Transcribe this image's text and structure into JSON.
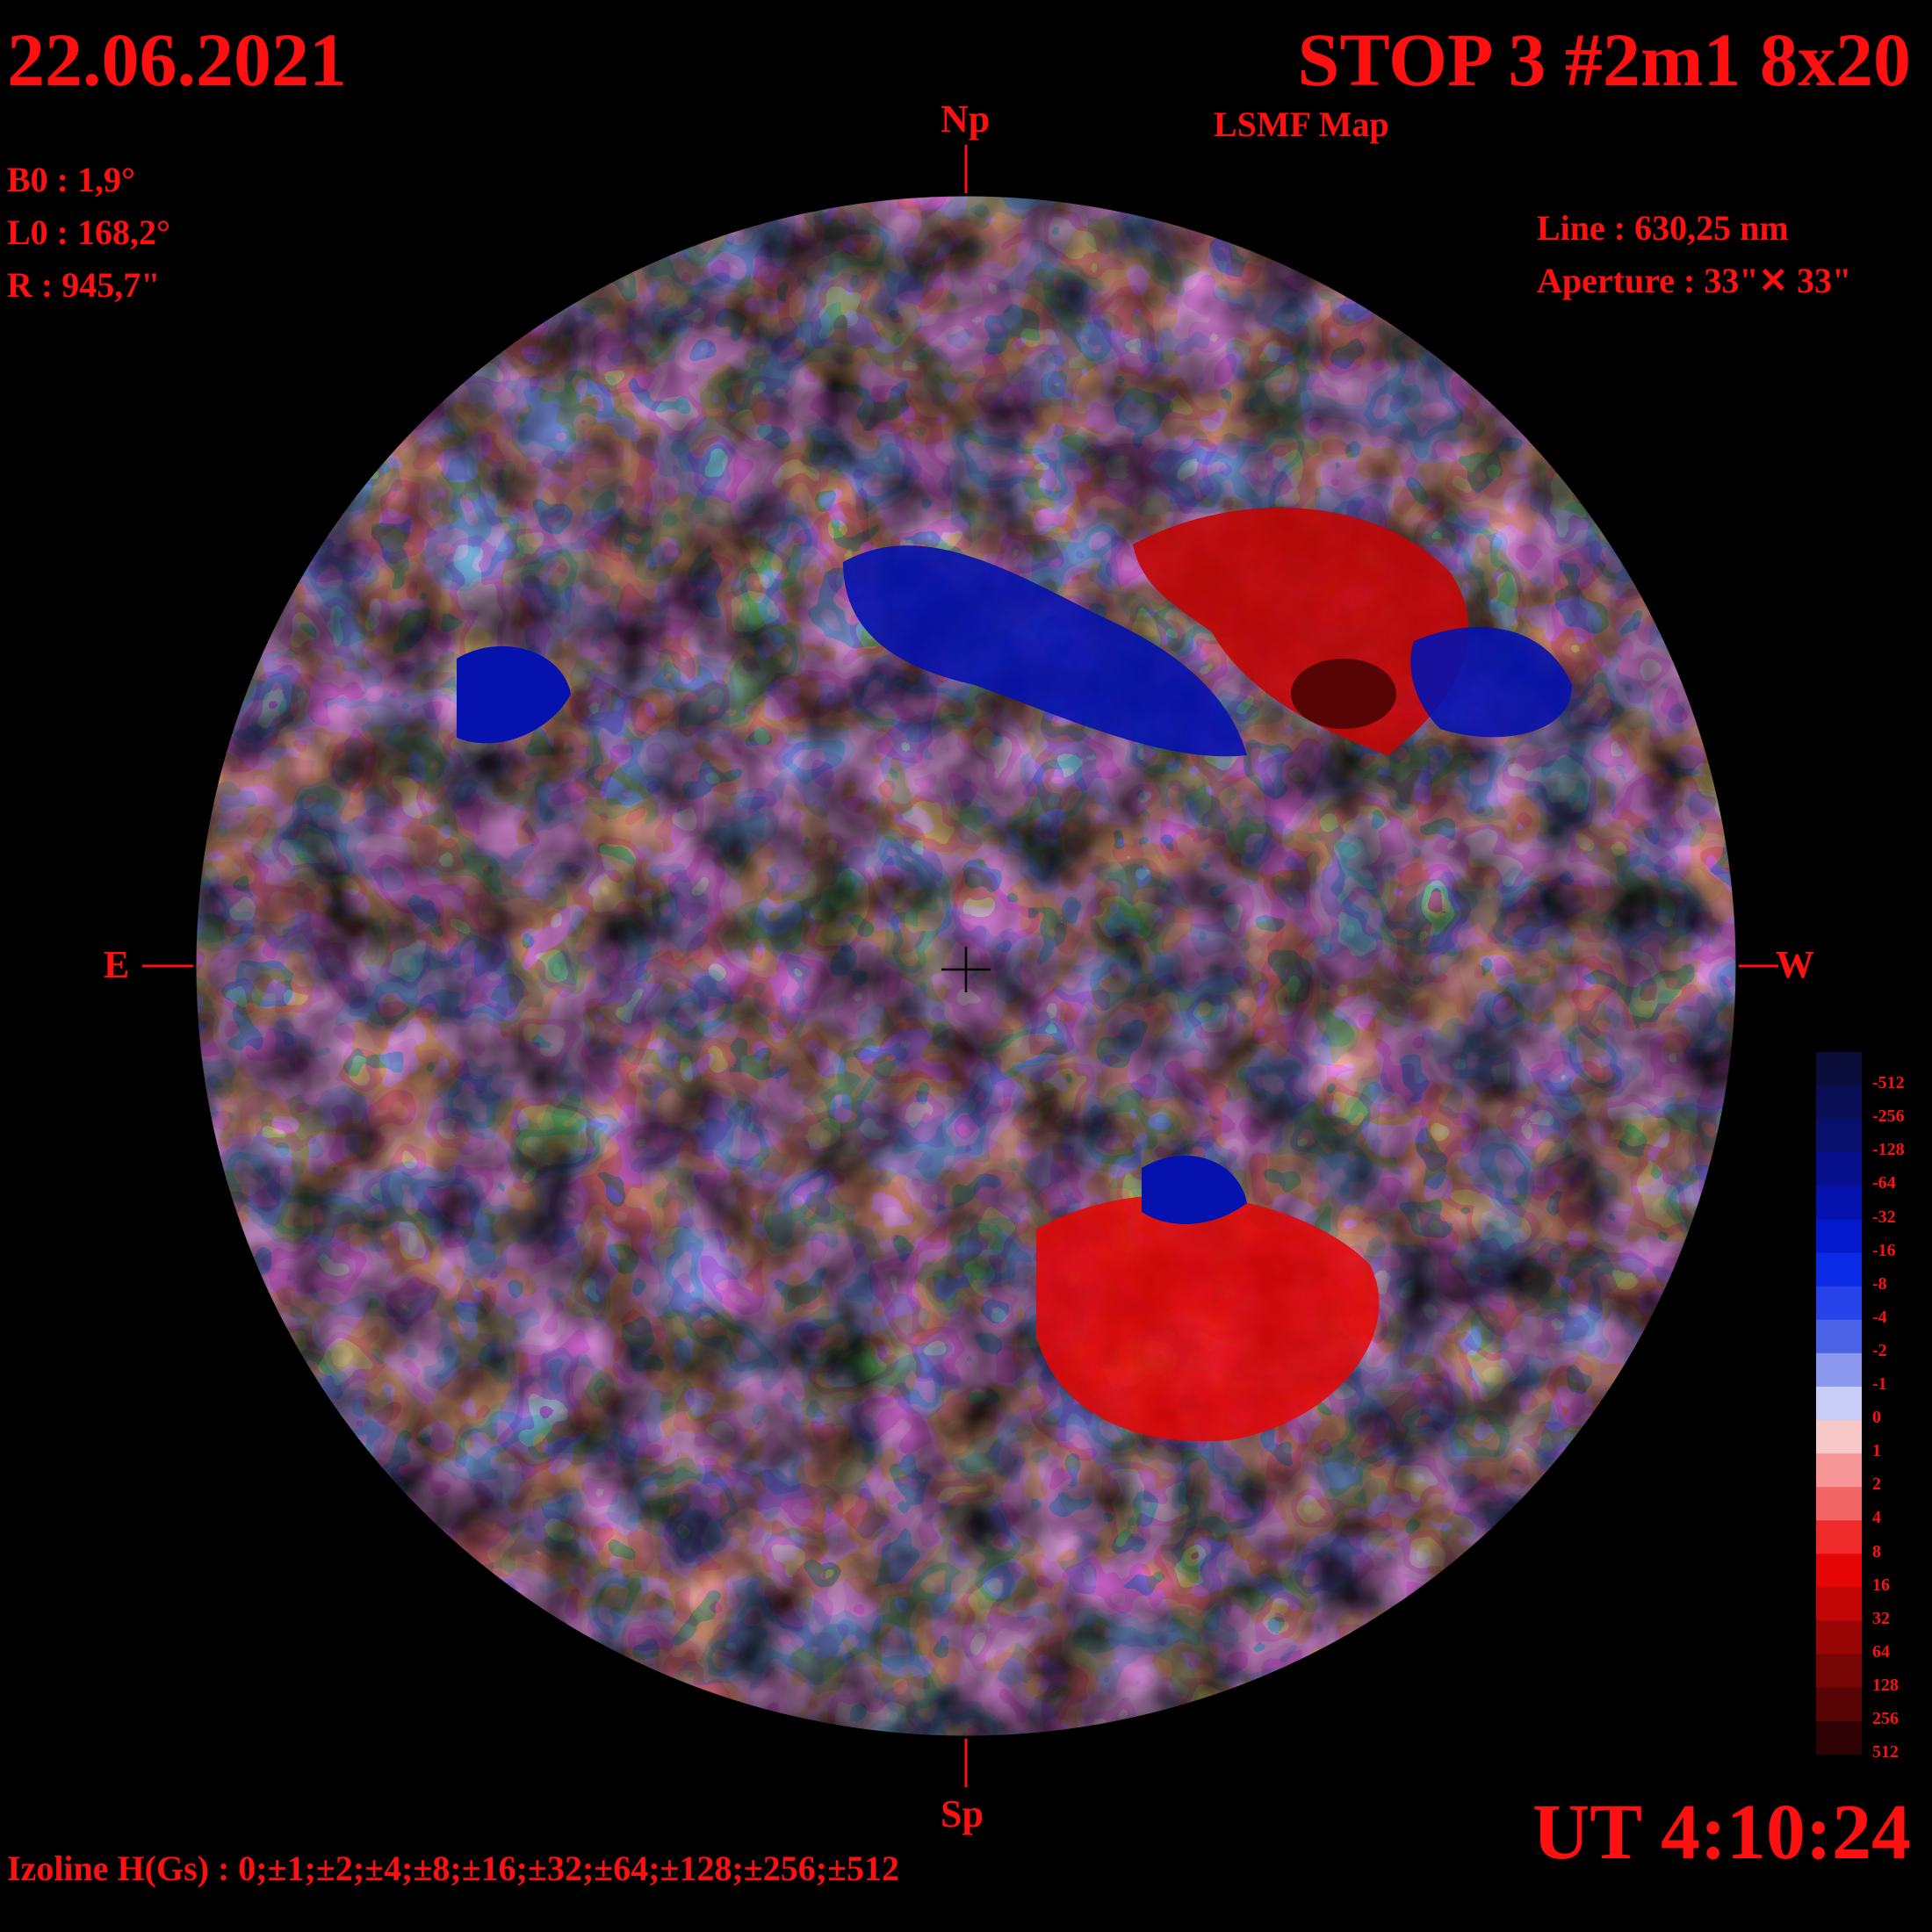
{
  "header": {
    "date": "22.06.2021",
    "title": "STOP 3 #2m1 8x20",
    "subtitle": "LSMF  Map"
  },
  "params": {
    "b0": "B0 : 1,9°",
    "l0": "L0 : 168,2°",
    "r": "R  : 945,7\""
  },
  "instrument": {
    "line": "Line :  630,25 nm",
    "aperture": "Aperture : 33\"✕ 33\""
  },
  "directions": {
    "north": "Np",
    "south": "Sp",
    "east": "E",
    "west": "W"
  },
  "time": "UT 4:10:24",
  "izoline": "Izoline H(Gs) : 0;±1;±2;±4;±8;±16;±32;±64;±128;±256;±512",
  "colorscale": {
    "levels": [
      "-512",
      "-256",
      "-128",
      "-64",
      "-32",
      "-16",
      "-8",
      "-4",
      "-2",
      "-1",
      "0",
      "1",
      "2",
      "4",
      "8",
      "16",
      "32",
      "64",
      "128",
      "256",
      "512"
    ],
    "colors": [
      "#0b0e3a",
      "#0a0f55",
      "#08106e",
      "#060f8c",
      "#0512ad",
      "#0418cc",
      "#0a2ae6",
      "#2642e8",
      "#4d63e6",
      "#8c97ee",
      "#c8cef7",
      "#f7c8c8",
      "#f79696",
      "#f26565",
      "#ee2a2a",
      "#e60505",
      "#c20505",
      "#9a0505",
      "#780505",
      "#560404",
      "#2e0202"
    ]
  }
}
